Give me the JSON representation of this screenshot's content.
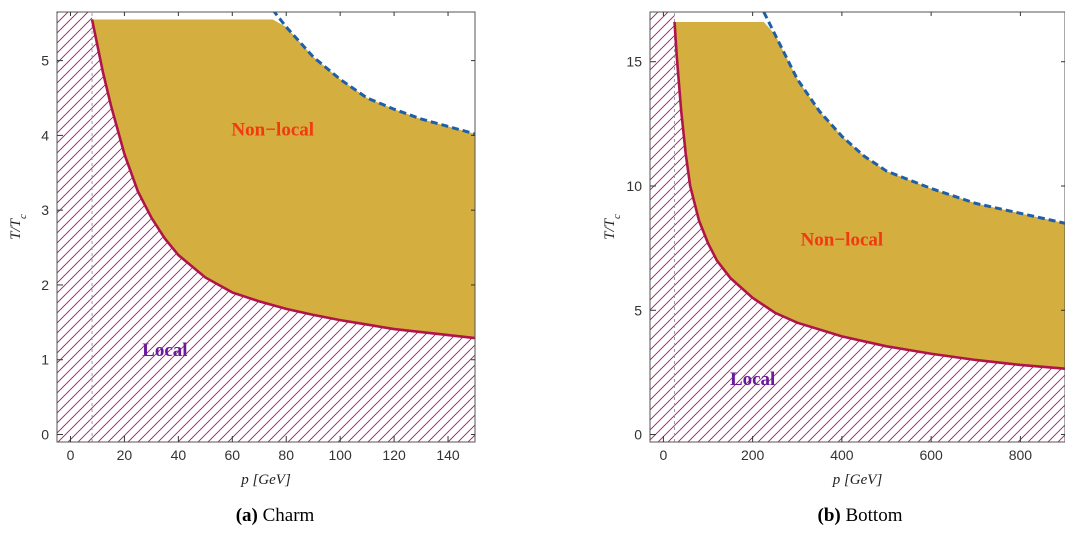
{
  "colors": {
    "nonlocal_fill": "#D4AE3F",
    "nonlocal_label": "#F03A10",
    "local_label": "#6A1B9A",
    "hatch": "#9C2062",
    "boundary_line": "#B0154A",
    "dashed_line": "#1F5FA8",
    "axis": "#333333"
  },
  "chart_data": [
    {
      "type": "area",
      "panel_tag": "(a)",
      "caption": "Charm",
      "xlabel": "p [GeV]",
      "ylabel": "T/T_c",
      "xlim": [
        -5,
        150
      ],
      "ylim": [
        -0.1,
        5.65
      ],
      "xticks": [
        0,
        20,
        40,
        60,
        80,
        100,
        120,
        140
      ],
      "yticks": [
        0,
        1,
        2,
        3,
        4,
        5
      ],
      "grid": false,
      "region_labels": [
        {
          "text": "Non−local",
          "at": [
            75,
            4.0
          ],
          "role": "nonlocal"
        },
        {
          "text": "Local",
          "at": [
            35,
            1.05
          ],
          "role": "local"
        }
      ],
      "vertical_line_x": 8,
      "top_y": 5.55,
      "boundary_curve": {
        "x": [
          8,
          10,
          12,
          15,
          20,
          25,
          30,
          35,
          40,
          50,
          60,
          70,
          80,
          90,
          100,
          110,
          120,
          130,
          140,
          150
        ],
        "y": [
          5.55,
          5.2,
          4.85,
          4.4,
          3.75,
          3.25,
          2.9,
          2.62,
          2.4,
          2.1,
          1.9,
          1.78,
          1.68,
          1.6,
          1.53,
          1.47,
          1.41,
          1.37,
          1.33,
          1.29
        ]
      },
      "dashed_curve": {
        "x": [
          75,
          80,
          90,
          100,
          110,
          120,
          130,
          140,
          150
        ],
        "y": [
          5.68,
          5.45,
          5.05,
          4.75,
          4.5,
          4.35,
          4.22,
          4.12,
          4.02
        ]
      }
    },
    {
      "type": "area",
      "panel_tag": "(b)",
      "caption": "Bottom",
      "xlabel": "p [GeV]",
      "ylabel": "T/T_c",
      "xlim": [
        -30,
        900
      ],
      "ylim": [
        -0.3,
        17
      ],
      "xticks": [
        0,
        200,
        400,
        600,
        800
      ],
      "yticks": [
        0,
        5,
        10,
        15
      ],
      "grid": false,
      "region_labels": [
        {
          "text": "Non−local",
          "at": [
            400,
            7.6
          ],
          "role": "nonlocal"
        },
        {
          "text": "Local",
          "at": [
            200,
            2.0
          ],
          "role": "local"
        }
      ],
      "vertical_line_x": 25,
      "top_y": 16.6,
      "boundary_curve": {
        "x": [
          25,
          30,
          40,
          50,
          60,
          80,
          100,
          120,
          150,
          200,
          250,
          300,
          400,
          500,
          600,
          700,
          800,
          900
        ],
        "y": [
          16.6,
          15.2,
          13.0,
          11.3,
          10.0,
          8.6,
          7.7,
          7.0,
          6.3,
          5.5,
          4.9,
          4.5,
          3.95,
          3.55,
          3.25,
          3.0,
          2.8,
          2.65
        ]
      },
      "dashed_curve": {
        "x": [
          225,
          250,
          300,
          350,
          400,
          450,
          500,
          600,
          700,
          800,
          900
        ],
        "y": [
          17.0,
          16.1,
          14.3,
          13.0,
          12.0,
          11.2,
          10.6,
          9.9,
          9.3,
          8.9,
          8.5
        ]
      }
    }
  ]
}
